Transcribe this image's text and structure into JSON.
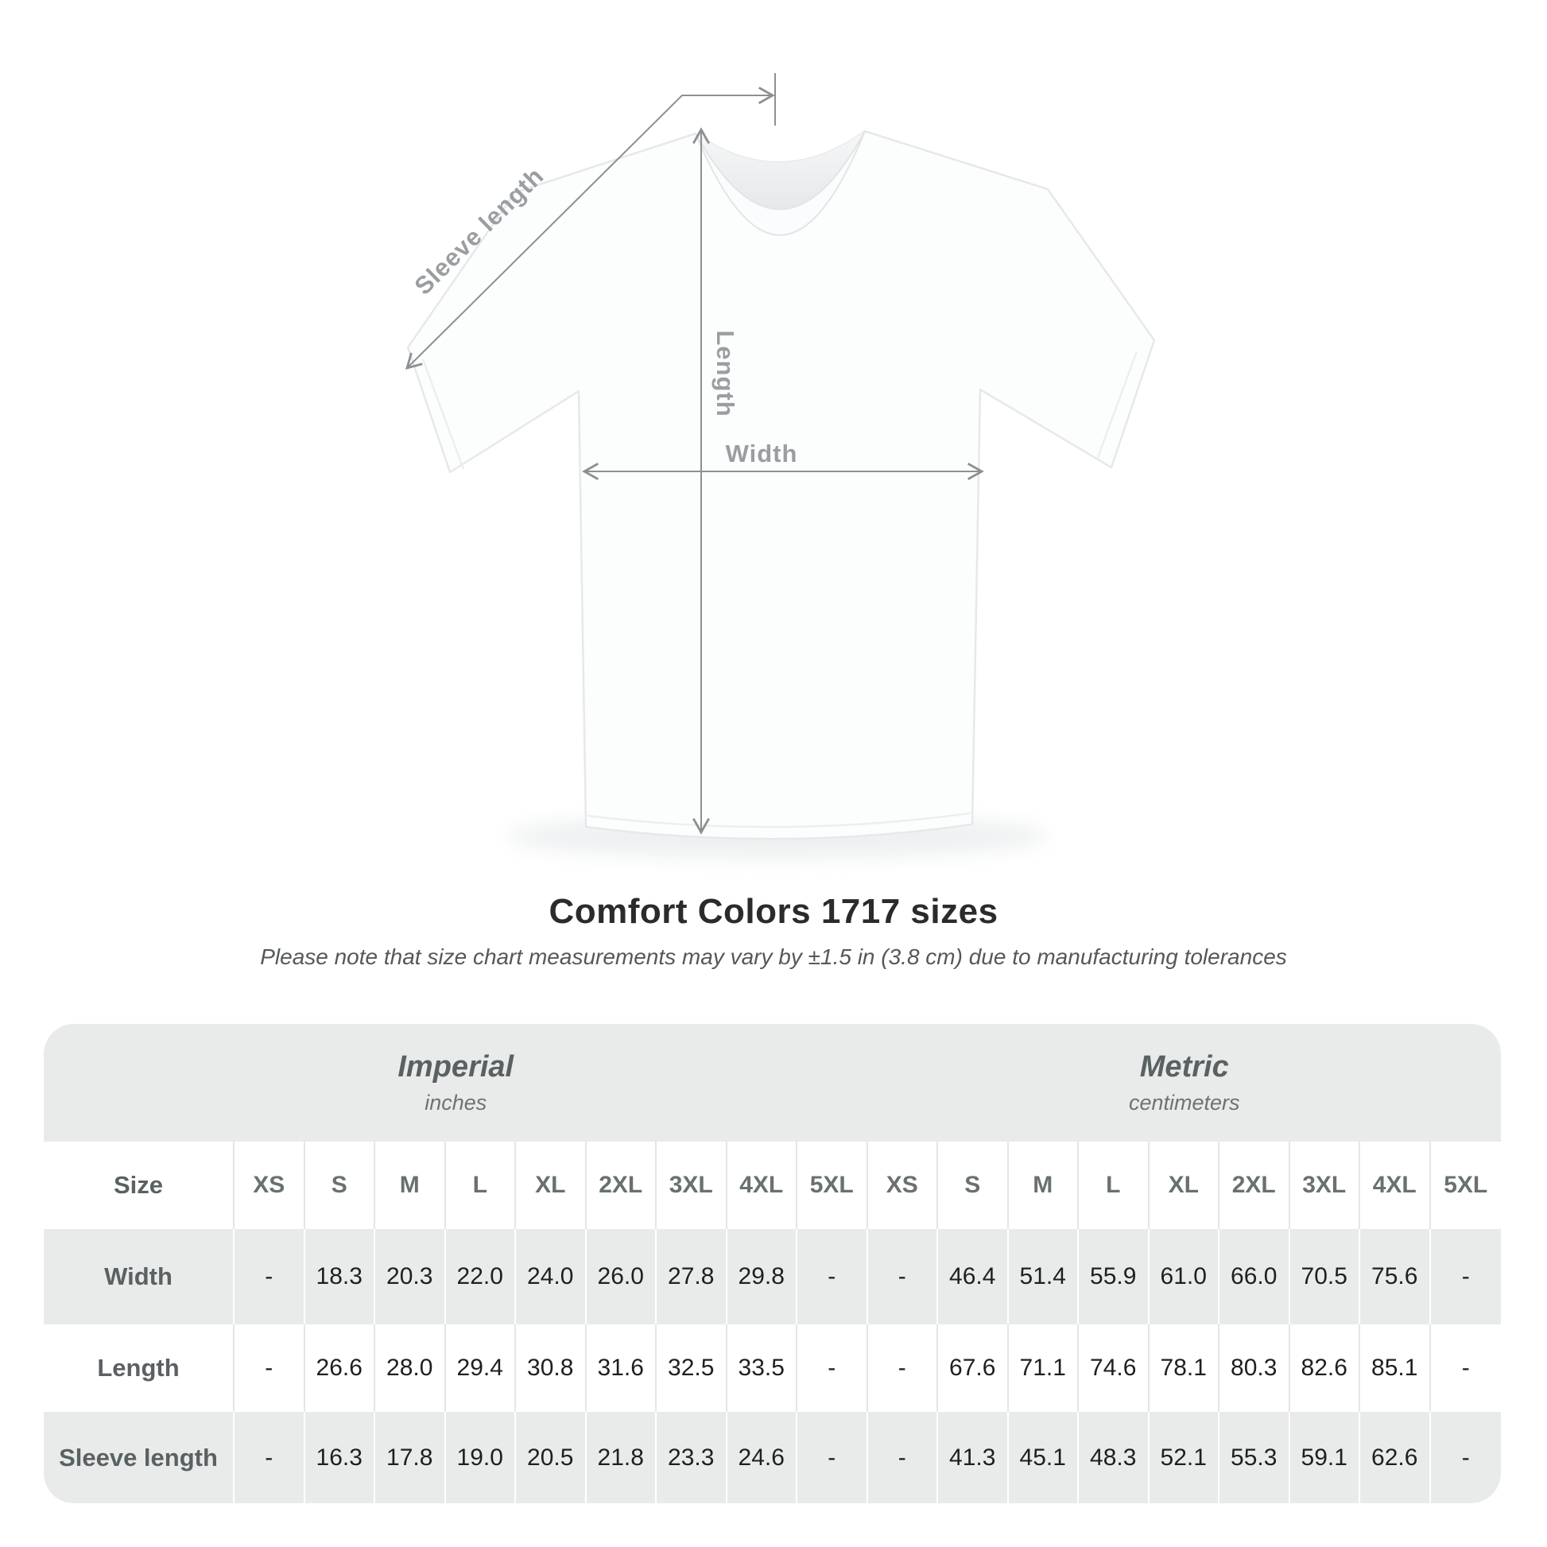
{
  "chart_data": {
    "type": "table",
    "title": "Comfort Colors 1717 sizes",
    "subtitle": "Please note that size chart measurements may vary by ±1.5 in (3.8 cm) due to manufacturing tolerances",
    "corner_label": "Size",
    "unit_groups": [
      {
        "name": "Imperial",
        "unit": "inches"
      },
      {
        "name": "Metric",
        "unit": "centimeters"
      }
    ],
    "size_headers": [
      "XS",
      "S",
      "M",
      "L",
      "XL",
      "2XL",
      "3XL",
      "4XL",
      "5XL"
    ],
    "rows": [
      {
        "label": "Width",
        "imperial": [
          "-",
          "18.3",
          "20.3",
          "22.0",
          "24.0",
          "26.0",
          "27.8",
          "29.8",
          "-"
        ],
        "metric": [
          "-",
          "46.4",
          "51.4",
          "55.9",
          "61.0",
          "66.0",
          "70.5",
          "75.6",
          "-"
        ]
      },
      {
        "label": "Length",
        "imperial": [
          "-",
          "26.6",
          "28.0",
          "29.4",
          "30.8",
          "31.6",
          "32.5",
          "33.5",
          "-"
        ],
        "metric": [
          "-",
          "67.6",
          "71.1",
          "74.6",
          "78.1",
          "80.3",
          "82.6",
          "85.1",
          "-"
        ]
      },
      {
        "label": "Sleeve length",
        "imperial": [
          "-",
          "16.3",
          "17.8",
          "19.0",
          "20.5",
          "21.8",
          "23.3",
          "24.6",
          "-"
        ],
        "metric": [
          "-",
          "41.3",
          "45.1",
          "48.3",
          "52.1",
          "55.3",
          "59.1",
          "62.6",
          "-"
        ]
      }
    ]
  },
  "diagram": {
    "labels": {
      "sleeve_length": "Sleeve length",
      "length": "Length",
      "width": "Width"
    },
    "colors": {
      "arrow": "#8d9093",
      "label": "#9a9ea1"
    }
  }
}
